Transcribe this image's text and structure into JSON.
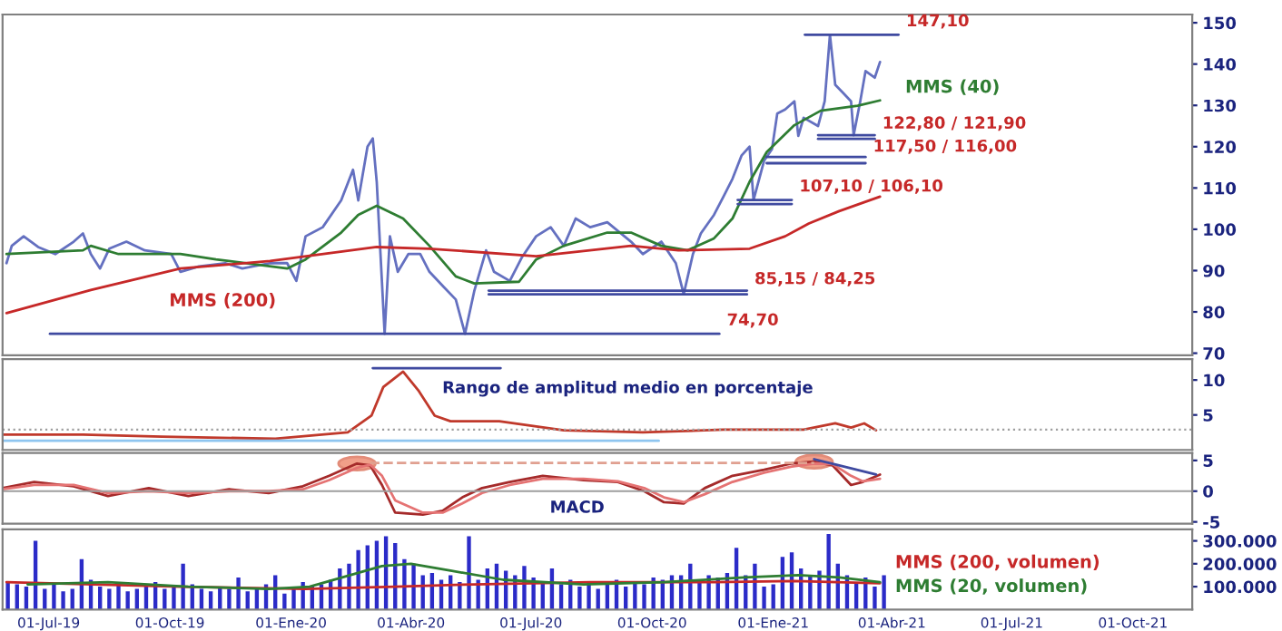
{
  "chart_data": [
    {
      "type": "line",
      "xlim": [
        "2019-05-27",
        "2021-11-15"
      ],
      "ylim": [
        69.5,
        152
      ],
      "yticks": [
        70,
        80,
        90,
        100,
        110,
        120,
        130,
        140,
        150
      ],
      "tick_labels": "y",
      "grid": false,
      "legend": false,
      "series": [
        {
          "color": "#6470c0",
          "x": [
            "2019-05-30",
            "2019-06-03",
            "2019-06-12",
            "2019-06-23",
            "2019-07-06",
            "2019-07-20",
            "2019-07-27",
            "2019-08-02",
            "2019-08-09",
            "2019-08-16",
            "2019-08-29",
            "2019-09-12",
            "2019-10-02",
            "2019-10-09",
            "2019-10-23",
            "2019-11-12",
            "2019-11-25",
            "2019-12-16",
            "2019-12-29",
            "2020-01-05",
            "2020-01-12",
            "2020-01-25",
            "2020-02-08",
            "2020-02-17",
            "2020-02-21",
            "2020-02-28",
            "2020-03-03",
            "2020-03-06",
            "2020-03-12",
            "2020-03-16",
            "2020-03-22",
            "2020-03-30",
            "2020-04-08",
            "2020-04-15",
            "2020-04-26",
            "2020-05-05",
            "2020-05-12",
            "2020-05-19",
            "2020-05-28",
            "2020-06-03",
            "2020-06-15",
            "2020-06-24",
            "2020-07-05",
            "2020-07-16",
            "2020-07-26",
            "2020-08-04",
            "2020-08-15",
            "2020-08-28",
            "2020-09-15",
            "2020-09-24",
            "2020-10-08",
            "2020-10-19",
            "2020-10-25",
            "2020-11-01",
            "2020-11-07",
            "2020-11-17",
            "2020-11-24",
            "2020-12-01",
            "2020-12-08",
            "2020-12-14",
            "2020-12-17",
            "2020-12-25",
            "2020-12-31",
            "2021-01-04",
            "2021-01-10",
            "2021-01-17",
            "2021-01-20",
            "2021-01-24",
            "2021-02-04",
            "2021-02-09",
            "2021-02-13",
            "2021-02-17",
            "2021-02-23",
            "2021-03-01",
            "2021-03-03",
            "2021-03-08",
            "2021-03-12",
            "2021-03-19",
            "2021-03-23"
          ],
          "values": [
            91.8,
            96,
            98.3,
            95.7,
            94,
            97,
            99,
            94,
            90.5,
            95.3,
            97,
            94.9,
            94,
            89.7,
            91,
            91.8,
            90.5,
            91.8,
            91.8,
            87.5,
            98.3,
            100.5,
            107,
            114.4,
            107,
            120,
            122,
            111.5,
            74.7,
            98.3,
            89.7,
            94,
            94,
            89.7,
            86,
            83,
            74.7,
            85,
            94.9,
            89.7,
            87.5,
            93.1,
            98.3,
            100.5,
            96,
            102.6,
            100.5,
            101.7,
            97,
            94,
            97,
            91.8,
            84.3,
            94,
            99,
            103.5,
            107.8,
            112.2,
            117.9,
            120,
            107.1,
            116.6,
            119.4,
            128,
            129,
            131,
            122.6,
            127,
            125,
            131,
            147.1,
            135,
            133,
            131,
            122.8,
            131,
            138.3,
            136.7,
            140.5
          ]
        },
        {
          "name": "MMS (40)",
          "color": "#2e7d32",
          "x": [
            "2019-05-30",
            "2019-07-27",
            "2019-08-02",
            "2019-08-23",
            "2019-10-09",
            "2019-11-05",
            "2019-12-29",
            "2020-01-12",
            "2020-02-08",
            "2020-02-21",
            "2020-03-06",
            "2020-03-26",
            "2020-04-15",
            "2020-05-05",
            "2020-05-19",
            "2020-06-22",
            "2020-07-05",
            "2020-07-26",
            "2020-08-28",
            "2020-09-15",
            "2020-10-08",
            "2020-10-28",
            "2020-11-17",
            "2020-12-01",
            "2020-12-14",
            "2020-12-27",
            "2021-01-17",
            "2021-02-06",
            "2021-03-06",
            "2021-03-23"
          ],
          "values": [
            94,
            94.9,
            96,
            94,
            94,
            92.7,
            90.5,
            92.7,
            99.2,
            103.5,
            105.7,
            102.6,
            96,
            88.6,
            86.9,
            87.3,
            92.7,
            96,
            99.2,
            99.2,
            96,
            94.9,
            97.8,
            102.6,
            111.5,
            118.7,
            125.2,
            128.7,
            129.9,
            131.2
          ]
        },
        {
          "name": "MMS (200)",
          "color": "#c62828",
          "x": [
            "2019-05-30",
            "2019-08-02",
            "2019-10-09",
            "2019-12-16",
            "2020-03-06",
            "2020-04-15",
            "2020-07-05",
            "2020-09-15",
            "2020-10-21",
            "2020-12-14",
            "2021-01-10",
            "2021-01-28",
            "2021-02-20",
            "2021-03-23"
          ],
          "values": [
            79.7,
            85.3,
            90.5,
            92.3,
            95.7,
            95.3,
            93.5,
            96,
            94.9,
            95.3,
            98.3,
            101.4,
            104.4,
            107.9
          ]
        },
        {
          "color": "#3f4aa0",
          "x": [
            "2021-01-25",
            "2021-04-06"
          ],
          "values": [
            147.1,
            147.1
          ]
        },
        {
          "color": "#3f4aa0",
          "x": [
            "2021-02-04",
            "2021-03-19"
          ],
          "values": [
            122.8,
            122.8
          ]
        },
        {
          "color": "#3f4aa0",
          "x": [
            "2021-02-04",
            "2021-03-19"
          ],
          "values": [
            121.9,
            121.9
          ]
        },
        {
          "color": "#3f4aa0",
          "x": [
            "2020-12-27",
            "2021-03-12"
          ],
          "values": [
            117.5,
            117.5
          ]
        },
        {
          "color": "#3f4aa0",
          "x": [
            "2020-12-27",
            "2021-03-12"
          ],
          "values": [
            116.0,
            116.0
          ]
        },
        {
          "color": "#3f4aa0",
          "x": [
            "2020-12-05",
            "2021-01-15"
          ],
          "values": [
            107.1,
            107.1
          ]
        },
        {
          "color": "#3f4aa0",
          "x": [
            "2020-12-05",
            "2021-01-15"
          ],
          "values": [
            106.1,
            106.1
          ]
        },
        {
          "color": "#3f4aa0",
          "x": [
            "2020-05-30",
            "2020-12-12"
          ],
          "values": [
            85.15,
            85.15
          ]
        },
        {
          "color": "#3f4aa0",
          "x": [
            "2020-05-30",
            "2020-12-12"
          ],
          "values": [
            84.25,
            84.25
          ]
        },
        {
          "color": "#3f4aa0",
          "x": [
            "2019-07-02",
            "2020-11-21"
          ],
          "values": [
            74.7,
            74.7
          ]
        }
      ],
      "annotations": [
        {
          "text": "147,10",
          "x": "2021-04-06",
          "y": 147.1
        },
        {
          "text": "122,80 / 121,90",
          "x": "2021-03-19",
          "y": 122.35
        },
        {
          "text": "117,50 / 116,00",
          "x": "2021-03-12",
          "y": 116.75
        },
        {
          "text": "107,10 / 106,10",
          "x": "2021-01-15",
          "y": 107.1
        },
        {
          "text": "85,15 / 84,25",
          "x": "2020-12-12",
          "y": 84.7
        },
        {
          "text": "74,70",
          "x": "2020-11-21",
          "y": 74.7
        }
      ]
    },
    {
      "type": "line",
      "xlim": [
        "2019-05-27",
        "2021-11-15"
      ],
      "ylim": [
        0,
        13
      ],
      "yticks": [
        5,
        10
      ],
      "tick_labels": "y",
      "grid": false,
      "legend": false,
      "series": [
        {
          "color": "#c0392b",
          "x": [
            "2019-05-27",
            "2019-07-27",
            "2019-09-25",
            "2019-12-20",
            "2020-02-13",
            "2020-03-02",
            "2020-03-11",
            "2020-03-26",
            "2020-04-07",
            "2020-04-19",
            "2020-05-01",
            "2020-06-07",
            "2020-07-26",
            "2020-09-24",
            "2020-11-24",
            "2021-01-24",
            "2021-02-17",
            "2021-03-01",
            "2021-03-11",
            "2021-03-20"
          ],
          "values": [
            2.2,
            2.2,
            1.9,
            1.6,
            2.5,
            4.9,
            9.0,
            11.2,
            8.4,
            4.9,
            4.1,
            4.1,
            2.8,
            2.5,
            2.9,
            2.9,
            3.8,
            3.2,
            3.8,
            2.8
          ]
        },
        {
          "color": "#8ec5f0",
          "x": [
            "2019-05-27",
            "2020-10-06"
          ],
          "values": [
            1.3,
            1.3
          ]
        },
        {
          "color": "#3f4aa0",
          "x": [
            "2020-03-03",
            "2020-06-08"
          ],
          "values": [
            11.7,
            11.7
          ]
        }
      ],
      "ref_lines": [
        {
          "axis": "y",
          "value": 2.9,
          "color": "#9e9e9e",
          "line_style": "dotted"
        }
      ],
      "annotations": [
        {
          "text": "Rango de amplitud medio en porcentaje",
          "x": "2020-04-19",
          "y": 6.9
        }
      ]
    },
    {
      "type": "line",
      "xlim": [
        "2019-05-27",
        "2021-11-15"
      ],
      "ylim": [
        -5.3,
        6.2
      ],
      "yticks": [
        -5,
        0,
        5
      ],
      "tick_labels": "y",
      "grid": false,
      "legend": false,
      "series": [
        {
          "color": "#a52a2a",
          "x": [
            "2019-05-27",
            "2019-06-20",
            "2019-07-20",
            "2019-08-15",
            "2019-09-15",
            "2019-10-15",
            "2019-11-15",
            "2019-12-15",
            "2020-01-10",
            "2020-01-30",
            "2020-02-20",
            "2020-03-01",
            "2020-03-10",
            "2020-03-20",
            "2020-04-10",
            "2020-04-25",
            "2020-05-10",
            "2020-05-25",
            "2020-06-15",
            "2020-07-10",
            "2020-08-10",
            "2020-09-05",
            "2020-09-25",
            "2020-10-10",
            "2020-10-25",
            "2020-11-10",
            "2020-12-01",
            "2020-12-25",
            "2021-01-15",
            "2021-02-01",
            "2021-02-15",
            "2021-03-01",
            "2021-03-10",
            "2021-03-23"
          ],
          "values": [
            0.5,
            1.5,
            0.8,
            -0.8,
            0.5,
            -0.8,
            0.3,
            -0.3,
            0.8,
            2.5,
            4.5,
            4.2,
            1,
            -3.5,
            -3.8,
            -3.2,
            -1,
            0.5,
            1.5,
            2.5,
            1.8,
            1.5,
            0,
            -1.8,
            -2,
            0.5,
            2.5,
            3.5,
            4.5,
            4.8,
            4.2,
            1,
            1.5,
            2.7
          ]
        },
        {
          "color": "#e57373",
          "x": [
            "2019-05-27",
            "2019-06-20",
            "2019-07-20",
            "2019-08-15",
            "2019-09-15",
            "2019-10-15",
            "2019-11-15",
            "2019-12-15",
            "2020-01-10",
            "2020-01-30",
            "2020-02-20",
            "2020-03-01",
            "2020-03-10",
            "2020-03-20",
            "2020-04-10",
            "2020-04-25",
            "2020-05-10",
            "2020-05-25",
            "2020-06-15",
            "2020-07-10",
            "2020-08-10",
            "2020-09-05",
            "2020-09-25",
            "2020-10-10",
            "2020-10-25",
            "2020-11-10",
            "2020-12-01",
            "2020-12-25",
            "2021-01-15",
            "2021-02-01",
            "2021-02-15",
            "2021-03-01",
            "2021-03-10",
            "2021-03-23"
          ],
          "values": [
            0.3,
            1.0,
            1.0,
            -0.3,
            0,
            -0.3,
            0,
            0,
            0.3,
            1.8,
            3.8,
            4.3,
            2.5,
            -1.5,
            -3.5,
            -3.5,
            -2,
            -0.3,
            1,
            2,
            2,
            1.6,
            0.5,
            -1,
            -1.8,
            -0.5,
            1.5,
            3,
            4,
            4.5,
            4.4,
            2.5,
            1.6,
            2
          ]
        },
        {
          "color": "#e0a090",
          "line_style": "dashed",
          "x": [
            "2020-03-01",
            "2021-02-01"
          ],
          "values": [
            4.6,
            4.6
          ]
        },
        {
          "color": "#3f4aa0",
          "x": [
            "2021-02-01",
            "2021-03-20"
          ],
          "values": [
            5.2,
            2.7
          ]
        }
      ],
      "ref_lines": [
        {
          "axis": "y",
          "value": 0,
          "color": "#9e9e9e",
          "line_style": "solid"
        }
      ],
      "annotations": [
        "MACD"
      ]
    },
    {
      "type": "bar",
      "xlim": [
        "2019-05-27",
        "2021-11-15"
      ],
      "ylim": [
        0,
        350000
      ],
      "yticks": [
        {
          "value": 100000,
          "label": "100.000"
        },
        {
          "value": 200000,
          "label": "200.000"
        },
        {
          "value": 300000,
          "label": "300.000"
        }
      ],
      "xticks": [
        {
          "value": "2019-07-01",
          "label": "01-Jul-19"
        },
        {
          "value": "2019-10-01",
          "label": "01-Oct-19"
        },
        {
          "value": "2020-01-01",
          "label": "01-Ene-20"
        },
        {
          "value": "2020-04-01",
          "label": "01-Abr-20"
        },
        {
          "value": "2020-07-01",
          "label": "01-Jul-20"
        },
        {
          "value": "2020-10-01",
          "label": "01-Oct-20"
        },
        {
          "value": "2021-01-01",
          "label": "01-Ene-21"
        },
        {
          "value": "2021-04-01",
          "label": "01-Abr-21"
        },
        {
          "value": "2021-07-01",
          "label": "01-Jul-21"
        },
        {
          "value": "2021-10-01",
          "label": "01-Oct-21"
        }
      ],
      "grid": false,
      "legend": false,
      "series": [
        {
          "type": "bar",
          "color": "#2b2bc8",
          "x": [
            "2019-05-31",
            "2019-06-07",
            "2019-06-14",
            "2019-06-21",
            "2019-06-28",
            "2019-07-05",
            "2019-07-12",
            "2019-07-19",
            "2019-07-26",
            "2019-08-02",
            "2019-08-09",
            "2019-08-16",
            "2019-08-23",
            "2019-08-30",
            "2019-09-06",
            "2019-09-13",
            "2019-09-20",
            "2019-09-27",
            "2019-10-04",
            "2019-10-11",
            "2019-10-18",
            "2019-10-25",
            "2019-11-01",
            "2019-11-08",
            "2019-11-15",
            "2019-11-22",
            "2019-11-29",
            "2019-12-06",
            "2019-12-13",
            "2019-12-20",
            "2019-12-27",
            "2020-01-03",
            "2020-01-10",
            "2020-01-17",
            "2020-01-24",
            "2020-01-31",
            "2020-02-07",
            "2020-02-14",
            "2020-02-21",
            "2020-02-28",
            "2020-03-06",
            "2020-03-13",
            "2020-03-20",
            "2020-03-27",
            "2020-04-03",
            "2020-04-10",
            "2020-04-17",
            "2020-04-24",
            "2020-05-01",
            "2020-05-08",
            "2020-05-15",
            "2020-05-22",
            "2020-05-29",
            "2020-06-05",
            "2020-06-12",
            "2020-06-19",
            "2020-06-26",
            "2020-07-03",
            "2020-07-10",
            "2020-07-17",
            "2020-07-24",
            "2020-07-31",
            "2020-08-07",
            "2020-08-14",
            "2020-08-21",
            "2020-08-28",
            "2020-09-04",
            "2020-09-11",
            "2020-09-18",
            "2020-09-25",
            "2020-10-02",
            "2020-10-09",
            "2020-10-16",
            "2020-10-23",
            "2020-10-30",
            "2020-11-06",
            "2020-11-13",
            "2020-11-20",
            "2020-11-27",
            "2020-12-04",
            "2020-12-11",
            "2020-12-18",
            "2020-12-25",
            "2021-01-01",
            "2021-01-08",
            "2021-01-15",
            "2021-01-22",
            "2021-01-29",
            "2021-02-05",
            "2021-02-12",
            "2021-02-19",
            "2021-02-26",
            "2021-03-05",
            "2021-03-12",
            "2021-03-19",
            "2021-03-26"
          ],
          "values": [
            120000,
            110000,
            100000,
            300000,
            90000,
            110000,
            80000,
            90000,
            220000,
            130000,
            100000,
            90000,
            110000,
            80000,
            90000,
            100000,
            120000,
            90000,
            100000,
            200000,
            110000,
            90000,
            80000,
            100000,
            90000,
            140000,
            80000,
            90000,
            110000,
            150000,
            70000,
            90000,
            120000,
            100000,
            110000,
            130000,
            180000,
            200000,
            260000,
            280000,
            300000,
            320000,
            290000,
            220000,
            200000,
            150000,
            160000,
            130000,
            150000,
            120000,
            320000,
            130000,
            180000,
            200000,
            170000,
            150000,
            190000,
            140000,
            120000,
            180000,
            110000,
            130000,
            100000,
            120000,
            90000,
            110000,
            130000,
            100000,
            120000,
            110000,
            140000,
            130000,
            150000,
            150000,
            200000,
            130000,
            150000,
            140000,
            160000,
            270000,
            150000,
            200000,
            100000,
            110000,
            230000,
            250000,
            180000,
            150000,
            170000,
            330000,
            200000,
            150000,
            120000,
            140000,
            100000,
            150000
          ]
        },
        {
          "type": "line",
          "name": "MMS (200, volumen)",
          "color": "#c62828",
          "x": [
            "2019-05-30",
            "2019-10-09",
            "2020-01-12",
            "2020-03-20",
            "2020-05-19",
            "2020-08-15",
            "2020-11-17",
            "2021-01-17",
            "2021-03-23"
          ],
          "values": [
            120000,
            100000,
            90000,
            100000,
            110000,
            120000,
            120000,
            125000,
            115000
          ]
        },
        {
          "type": "line",
          "name": "MMS (20, volumen)",
          "color": "#2e7d32",
          "x": [
            "2019-06-15",
            "2019-08-15",
            "2019-10-15",
            "2019-12-15",
            "2020-01-15",
            "2020-03-10",
            "2020-04-01",
            "2020-05-01",
            "2020-06-10",
            "2020-08-10",
            "2020-10-10",
            "2020-12-10",
            "2021-01-20",
            "2021-02-20",
            "2021-03-23"
          ],
          "values": [
            110000,
            120000,
            100000,
            90000,
            100000,
            190000,
            200000,
            170000,
            130000,
            110000,
            120000,
            140000,
            150000,
            140000,
            120000
          ]
        }
      ]
    }
  ]
}
